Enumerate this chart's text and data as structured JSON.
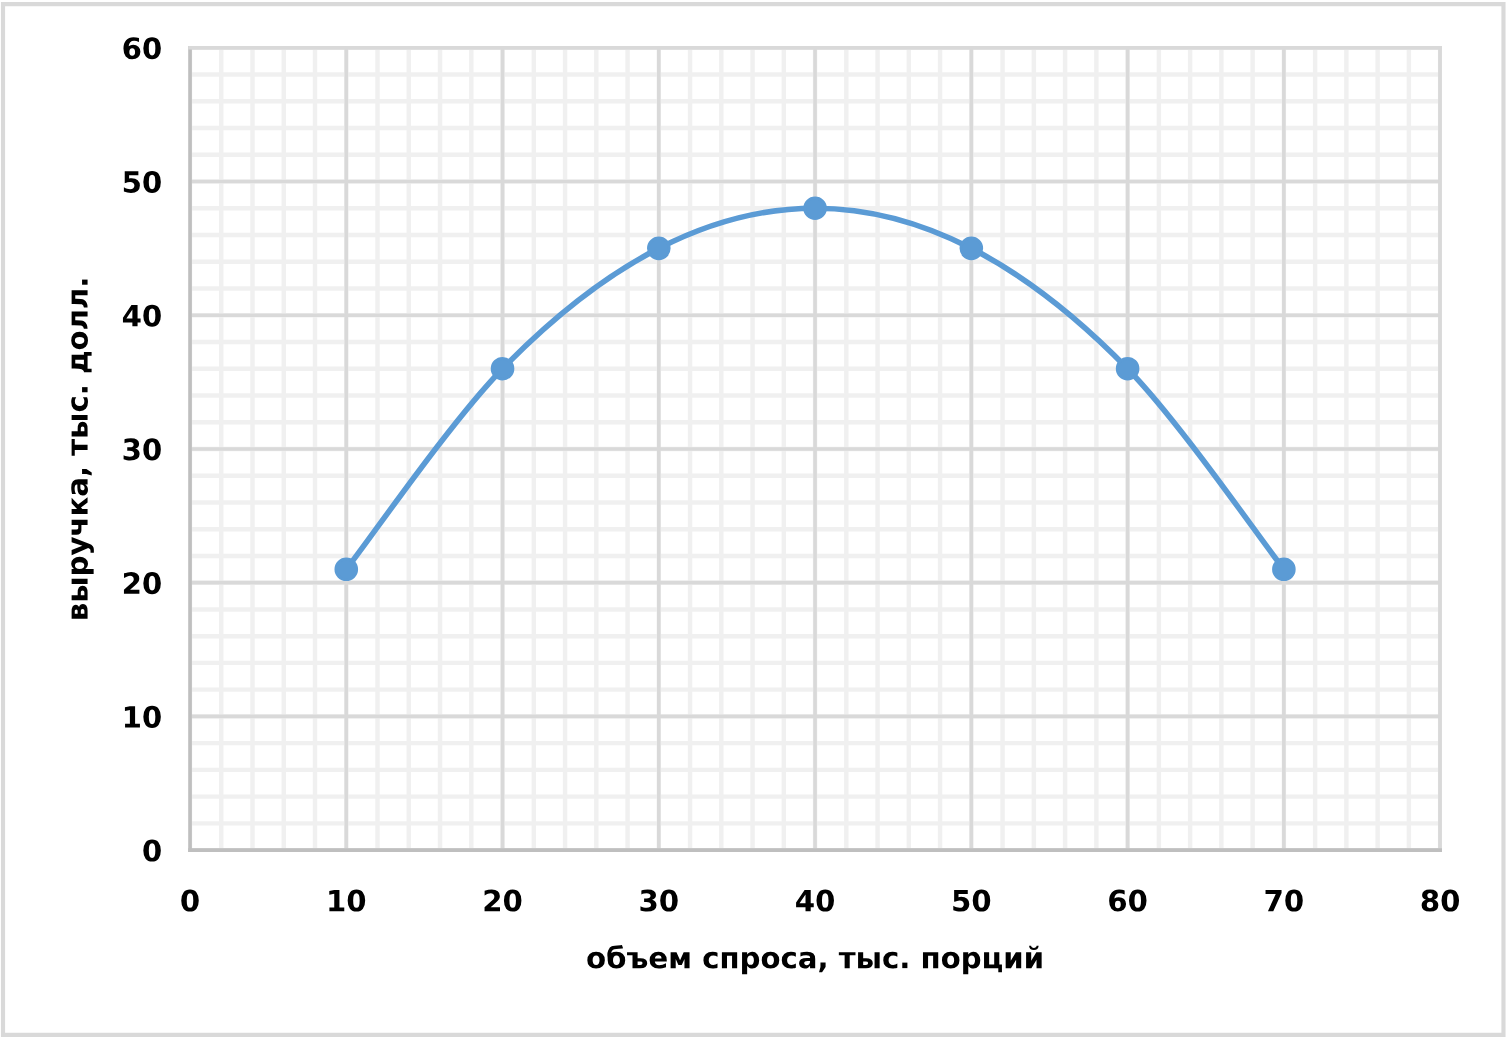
{
  "chart_data": {
    "type": "line",
    "xlabel": "объем спроса, тыс. порций",
    "ylabel": "выручка, тыс. долл.",
    "x": [
      10,
      20,
      30,
      40,
      50,
      60,
      70
    ],
    "series": [
      {
        "color": "#5b9bd5",
        "values": [
          21,
          36,
          45,
          48,
          45,
          36,
          21
        ]
      }
    ],
    "xlim": [
      0,
      80
    ],
    "xticks": [
      0,
      10,
      20,
      30,
      40,
      50,
      60,
      70,
      80
    ],
    "ylim": [
      0,
      60
    ],
    "yticks": [
      0,
      10,
      20,
      30,
      40,
      50,
      60
    ],
    "grid": true,
    "marker": "circle",
    "line_style": "solid"
  }
}
